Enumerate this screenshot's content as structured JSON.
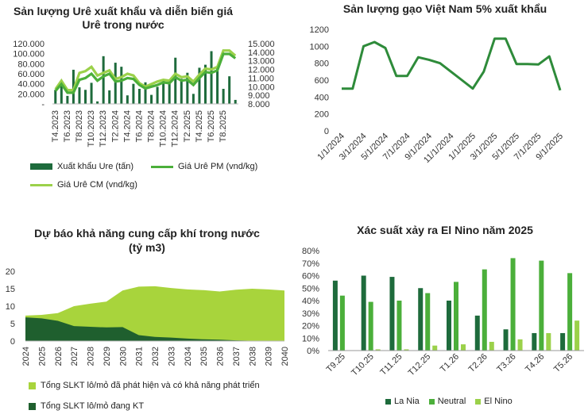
{
  "colors": {
    "dark_green": "#1E6B3C",
    "mid_green": "#4BAF3A",
    "light_green": "#9BD14A",
    "area_light": "#A8D43C",
    "area_dark": "#1F5F2E",
    "line_green": "#2E8B3A"
  },
  "chart_data": [
    {
      "id": "urea",
      "type": "bar+line",
      "title": "Sản lượng Urê xuất khẩu và diễn biến giá Urê trong nước",
      "title_line1": "Sản lượng Urê xuất khẩu và diễn biến giá",
      "title_line2": "Urê trong nước",
      "left_ticks": [
        "120.000",
        "100.000",
        "80.000",
        "60.000",
        "40.000",
        "20.000",
        "-"
      ],
      "right_ticks": [
        "15.000",
        "14.000",
        "13.000",
        "12.000",
        "11.000",
        "10.000",
        "9.000",
        "8.000"
      ],
      "ylim_left": [
        0,
        120000
      ],
      "ylim_right": [
        8000,
        15000
      ],
      "x_tick_labels": [
        "T4.2023",
        "T6.2023",
        "T8.2023",
        "T10.2023",
        "T12.2023",
        "T2.2024",
        "T4.2024",
        "T6.2024",
        "T8.2024",
        "T10.2024",
        "T12.2024",
        "T2.2025",
        "T4.2025",
        "T6.2025",
        "T8.2025"
      ],
      "bars": [
        28000,
        40000,
        16000,
        68000,
        33000,
        28000,
        42000,
        5000,
        95000,
        27000,
        82000,
        74000,
        17000,
        40000,
        30000,
        43000,
        18000,
        34000,
        48000,
        45000,
        92000,
        50000,
        62000,
        20000,
        72000,
        78000,
        105000,
        73000,
        30000,
        55000,
        8000
      ],
      "price_pm": [
        9500,
        10300,
        9300,
        9300,
        10800,
        11000,
        11500,
        10700,
        11200,
        11500,
        10600,
        10700,
        11000,
        10900,
        10200,
        9800,
        10000,
        10200,
        10500,
        10400,
        11100,
        10700,
        10800,
        10200,
        11000,
        11700,
        11600,
        11900,
        13800,
        13800,
        13300
      ],
      "price_cm": [
        9700,
        10700,
        9600,
        9600,
        11600,
        11800,
        12300,
        11300,
        11600,
        11900,
        10900,
        11100,
        11500,
        11300,
        10400,
        10000,
        10300,
        10600,
        10800,
        10700,
        11500,
        11100,
        11200,
        10600,
        11400,
        12100,
        12000,
        12300,
        14200,
        14200,
        13600
      ],
      "legend": [
        "Xuất khẩu Ure (tấn)",
        "Giá Urê PM (vnd/kg)",
        "Giá Urê CM (vnd/kg)"
      ]
    },
    {
      "id": "rice",
      "type": "line",
      "title": "Sản lượng gạo Việt Nam 5% xuất khẩu",
      "y_ticks": [
        "1200",
        "1000",
        "800",
        "600",
        "400",
        "200",
        "0"
      ],
      "ylim": [
        0,
        1200
      ],
      "x_tick_labels": [
        "1/1/2024",
        "3/1/2024",
        "5/1/2024",
        "7/1/2024",
        "9/1/2024",
        "11/1/2024",
        "1/1/2025",
        "3/1/2025",
        "5/1/2025",
        "7/1/2025",
        "9/1/2025"
      ],
      "values": [
        500,
        500,
        1000,
        1050,
        980,
        650,
        650,
        870,
        840,
        800,
        700,
        600,
        500,
        700,
        1090,
        1090,
        790,
        790,
        785,
        880,
        480
      ]
    },
    {
      "id": "gas",
      "type": "area",
      "title": "Dự báo khả năng cung cấp khí trong nước (tỷ m3)",
      "title_line1": "Dự báo khả năng cung cấp khí trong nước",
      "title_line2": "(tỷ m3)",
      "y_ticks": [
        "20",
        "15",
        "10",
        "5",
        "0"
      ],
      "ylim": [
        0,
        20
      ],
      "categories": [
        "2024",
        "2025",
        "2026",
        "2027",
        "2028",
        "2029",
        "2030",
        "2031",
        "2032",
        "2033",
        "2034",
        "2035",
        "2036",
        "2037",
        "2038",
        "2039",
        "2040"
      ],
      "total": [
        7.3,
        7.5,
        8.0,
        10.0,
        10.7,
        11.3,
        14.5,
        15.6,
        15.7,
        15.2,
        14.8,
        14.6,
        14.2,
        14.7,
        15.0,
        14.8,
        14.5
      ],
      "producing": [
        6.8,
        6.5,
        5.8,
        4.3,
        4.1,
        3.9,
        4.0,
        1.7,
        1.2,
        1.0,
        0.7,
        0.5,
        0.4,
        0.2,
        0.1,
        0.05,
        0
      ],
      "legend": [
        "Tổng SLKT lô/mỏ đã phát hiện và có khả năng phát triển",
        "Tổng SLKT lô/mỏ đang KT"
      ]
    },
    {
      "id": "elnino",
      "type": "bar",
      "title": "Xác suất xảy ra El Nino năm 2025",
      "y_ticks": [
        "80%",
        "70%",
        "60%",
        "50%",
        "40%",
        "30%",
        "20%",
        "10%",
        "0%"
      ],
      "ylim": [
        0,
        80
      ],
      "categories": [
        "T9.25",
        "T10.25",
        "T11.25",
        "T12.25",
        "T1.26",
        "T2.26",
        "T3.26",
        "T4.26",
        "T5.26"
      ],
      "series": [
        {
          "name": "La Nia",
          "values": [
            56,
            60,
            59,
            50,
            40,
            28,
            17,
            14,
            14
          ]
        },
        {
          "name": "Neutral",
          "values": [
            44,
            39,
            40,
            46,
            55,
            65,
            74,
            72,
            62
          ]
        },
        {
          "name": "El Nino",
          "values": [
            0,
            1,
            1,
            4,
            5,
            7,
            9,
            14,
            24
          ]
        }
      ]
    }
  ]
}
